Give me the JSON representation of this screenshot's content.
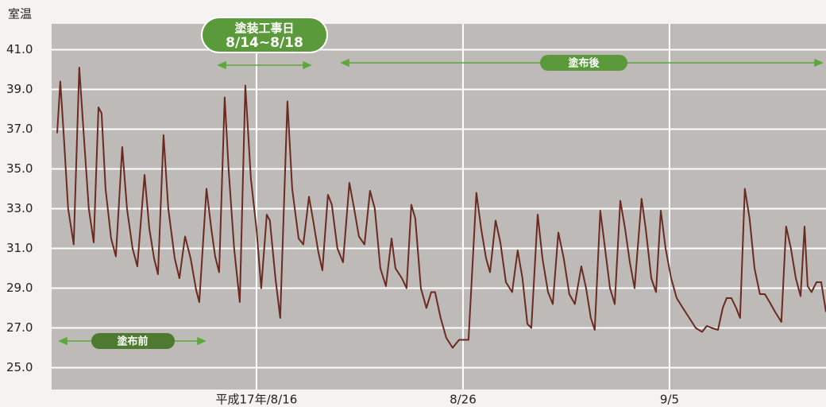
{
  "chart_data": {
    "type": "line",
    "y_label": "室温",
    "period_label": [
      "塗装工事日",
      "8/14~8/18"
    ],
    "after_label": "塗布後",
    "before_label": "塗布前",
    "xlim": [
      6.08,
      43.58
    ],
    "xticks": [
      {
        "value": 16,
        "label": "平成17年/8/16"
      },
      {
        "value": 26,
        "label": "8/26"
      },
      {
        "value": 36,
        "label": "9/5"
      }
    ],
    "ylim": [
      23.9,
      42.3
    ],
    "yticks": [
      {
        "value": 25,
        "label": "25.0"
      },
      {
        "value": 27,
        "label": "27.0"
      },
      {
        "value": 29,
        "label": "29.0"
      },
      {
        "value": 31,
        "label": "31.0"
      },
      {
        "value": 33,
        "label": "33.0"
      },
      {
        "value": 35,
        "label": "35.0"
      },
      {
        "value": 37,
        "label": "37.0"
      },
      {
        "value": 39,
        "label": "39.0"
      },
      {
        "value": 41,
        "label": "41.0"
      }
    ],
    "grid": true,
    "x": [
      6.35,
      6.5,
      6.65,
      6.88,
      7.15,
      7.42,
      7.62,
      7.88,
      8.12,
      8.35,
      8.5,
      8.69,
      8.96,
      9.19,
      9.5,
      9.73,
      10.0,
      10.23,
      10.58,
      10.81,
      11.04,
      11.23,
      11.5,
      11.73,
      12.04,
      12.27,
      12.54,
      12.81,
      13.08,
      13.23,
      13.58,
      13.81,
      14.0,
      14.19,
      14.46,
      14.65,
      14.92,
      15.19,
      15.46,
      15.73,
      16.0,
      16.23,
      16.5,
      16.65,
      16.92,
      17.15,
      17.5,
      17.73,
      18.04,
      18.27,
      18.54,
      18.73,
      19.0,
      19.19,
      19.46,
      19.65,
      19.92,
      20.19,
      20.5,
      20.73,
      20.96,
      21.23,
      21.5,
      21.73,
      22.0,
      22.27,
      22.54,
      22.73,
      23.04,
      23.27,
      23.5,
      23.69,
      23.96,
      24.23,
      24.46,
      24.65,
      24.92,
      25.19,
      25.5,
      25.81,
      26.27,
      26.65,
      26.88,
      27.12,
      27.31,
      27.58,
      27.81,
      28.08,
      28.38,
      28.65,
      28.88,
      29.12,
      29.31,
      29.62,
      29.85,
      30.12,
      30.35,
      30.62,
      30.88,
      31.15,
      31.42,
      31.73,
      31.96,
      32.19,
      32.38,
      32.65,
      32.88,
      33.12,
      33.35,
      33.62,
      33.85,
      34.08,
      34.31,
      34.65,
      34.85,
      35.12,
      35.35,
      35.58,
      35.81,
      36.08,
      36.35,
      36.65,
      36.96,
      37.27,
      37.58,
      37.81,
      38.04,
      38.35,
      38.58,
      38.77,
      39.0,
      39.23,
      39.42,
      39.65,
      39.88,
      40.12,
      40.38,
      40.62,
      40.85,
      41.12,
      41.42,
      41.65,
      41.88,
      42.12,
      42.35,
      42.54,
      42.69,
      42.88,
      43.12,
      43.35,
      43.58
    ],
    "series": [
      {
        "color": "#6b2a20",
        "values": [
          36.8,
          39.4,
          37,
          33,
          31.2,
          40.1,
          37,
          33,
          31.3,
          38.1,
          37.8,
          34,
          31.5,
          30.6,
          36.1,
          33,
          31,
          30.1,
          34.7,
          32,
          30.5,
          29.7,
          36.7,
          33,
          30.5,
          29.5,
          31.6,
          30.5,
          28.9,
          28.3,
          34,
          32,
          30.6,
          29.8,
          38.6,
          35,
          31,
          28.3,
          39.2,
          34.5,
          32,
          29,
          32.7,
          32.4,
          29.5,
          27.5,
          38.4,
          34,
          31.5,
          31.2,
          33.6,
          32.5,
          30.8,
          29.9,
          33.7,
          33.2,
          31,
          30.3,
          34.3,
          33,
          31.6,
          31.2,
          33.9,
          33,
          30,
          29.1,
          31.5,
          30,
          29.5,
          29,
          33.2,
          32.5,
          29,
          28,
          28.8,
          28.8,
          27.5,
          26.5,
          26,
          26.4,
          26.4,
          33.8,
          32,
          30.5,
          29.8,
          32.4,
          31.3,
          29.3,
          28.8,
          30.9,
          29.5,
          27.2,
          27,
          32.7,
          30.5,
          28.8,
          28.2,
          31.8,
          30.5,
          28.7,
          28.2,
          30.1,
          29,
          27.5,
          26.9,
          32.9,
          31,
          29,
          28.2,
          33.4,
          32,
          30.3,
          29,
          33.5,
          32,
          29.5,
          28.8,
          32.9,
          31,
          29.5,
          28.5,
          28,
          27.5,
          27,
          26.8,
          27.1,
          27,
          26.9,
          28,
          28.5,
          28.5,
          28,
          27.5,
          34,
          32.5,
          30,
          28.7,
          28.7,
          28.3,
          27.8,
          27.3,
          32.1,
          31,
          29.5,
          28.6,
          32.1,
          29.1,
          28.8,
          29.3,
          29.3,
          27.8
        ]
      }
    ]
  }
}
